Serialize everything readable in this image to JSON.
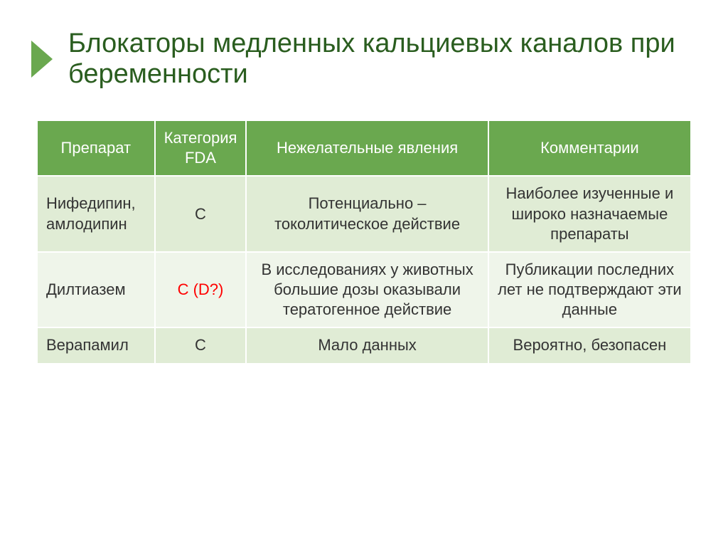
{
  "slide": {
    "title": "Блокаторы медленных кальциевых каналов при беременности",
    "title_color": "#2a5d1f",
    "title_fontsize": 38,
    "bullet_color": "#6aa84f"
  },
  "table": {
    "header_bg": "#6aa84f",
    "header_fg": "#ffffff",
    "header_fontsize": 22,
    "cell_fontsize": 22,
    "cell_fg": "#333333",
    "row_bg_a": "#e0ecd5",
    "row_bg_b": "#eff5ea",
    "highlight_color": "#ff0000",
    "col_widths": [
      "18%",
      "14%",
      "37%",
      "31%"
    ],
    "columns": [
      "Препарат",
      "Категория FDA",
      "Нежелательные явления",
      "Комментарии"
    ],
    "rows": [
      {
        "drug": "Нифедипин, амлодипин",
        "category": "С",
        "category_highlight": false,
        "adverse": "Потенциально – токолитическое действие",
        "comment": "Наиболее изученные и широко назначаемые препараты"
      },
      {
        "drug": "Дилтиазем",
        "category": "С (D?)",
        "category_highlight": true,
        "adverse": "В исследованиях у животных большие дозы оказывали тератогенное действие",
        "comment": "Публикации последних лет не подтверждают эти данные"
      },
      {
        "drug": "Верапамил",
        "category": "С",
        "category_highlight": false,
        "adverse": "Мало данных",
        "comment": "Вероятно, безопасен"
      }
    ]
  }
}
